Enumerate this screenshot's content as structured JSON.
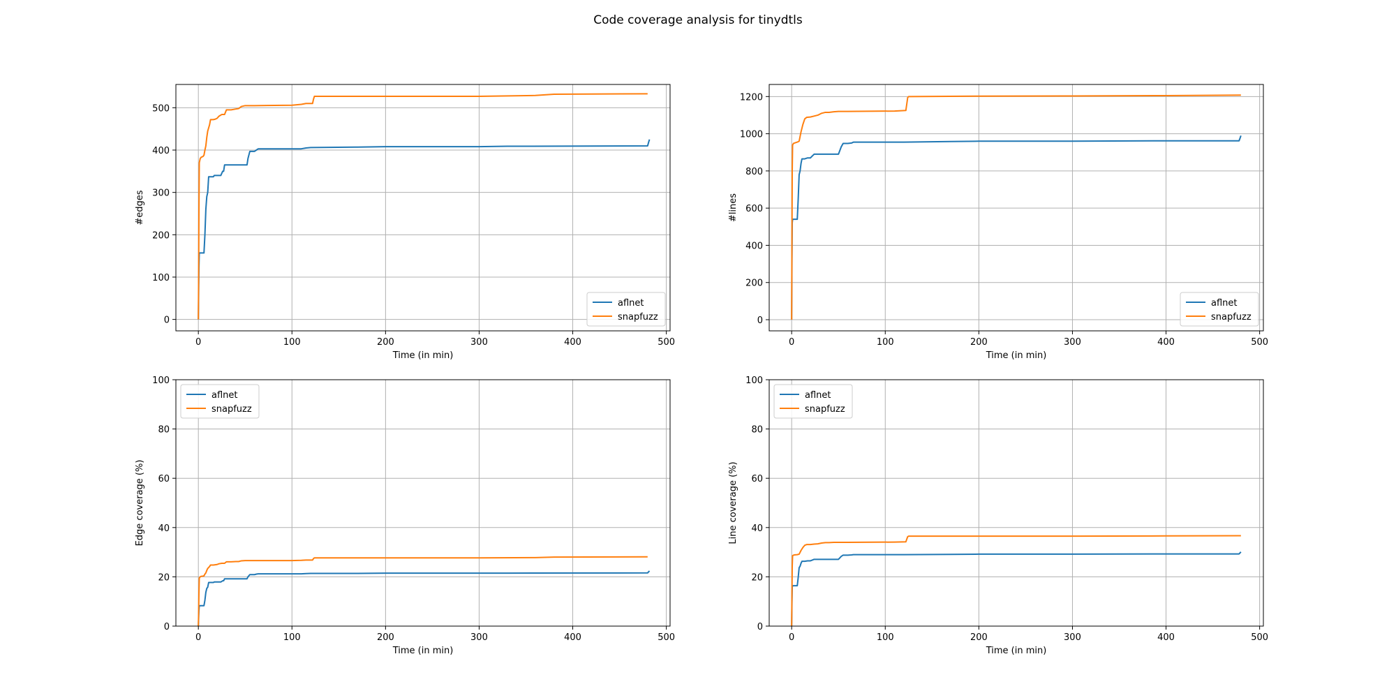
{
  "figure": {
    "title": "Code coverage analysis for tinydtls",
    "colors": {
      "aflnet": "#1f77b4",
      "snapfuzz": "#ff7f0e",
      "grid": "#b0b0b0"
    }
  },
  "chart_data": [
    {
      "type": "line",
      "xlabel": "Time (in min)",
      "ylabel": "#edges",
      "xlim": [
        -24,
        504
      ],
      "ylim": [
        -27,
        555
      ],
      "xticks": [
        0,
        100,
        200,
        300,
        400,
        500
      ],
      "yticks": [
        0,
        100,
        200,
        300,
        400,
        500
      ],
      "grid": true,
      "legend_loc": "lower-right",
      "series": [
        {
          "name": "aflnet",
          "color": "#1f77b4",
          "x": [
            0,
            0.3,
            0.6,
            1,
            2,
            4,
            6,
            7,
            8,
            9,
            10,
            11,
            13,
            16,
            17,
            19,
            24,
            26,
            27,
            28,
            30,
            48,
            52,
            53,
            55,
            56,
            60,
            62,
            64,
            67,
            70,
            110,
            115,
            120,
            170,
            200,
            300,
            330,
            480,
            481,
            482
          ],
          "y": [
            0,
            60,
            120,
            157,
            157,
            157,
            157,
            200,
            260,
            290,
            300,
            337,
            337,
            337,
            340,
            340,
            340,
            350,
            350,
            365,
            365,
            365,
            365,
            380,
            397,
            397,
            397,
            400,
            403,
            403,
            403,
            403,
            405,
            406,
            407,
            408,
            408,
            409,
            410,
            418,
            425
          ]
        },
        {
          "name": "snapfuzz",
          "color": "#ff7f0e",
          "x": [
            0,
            0.3,
            0.6,
            1,
            2,
            3,
            5,
            6,
            7,
            8,
            9,
            10,
            12,
            13,
            16,
            18,
            20,
            22,
            25,
            28,
            30,
            35,
            40,
            43,
            46,
            50,
            55,
            60,
            100,
            110,
            115,
            122,
            123,
            124,
            125,
            200,
            300,
            360,
            380,
            480
          ],
          "y": [
            0,
            100,
            250,
            370,
            380,
            383,
            385,
            388,
            400,
            410,
            430,
            445,
            460,
            472,
            472,
            473,
            475,
            480,
            484,
            484,
            495,
            495,
            497,
            498,
            503,
            505,
            505,
            505,
            506,
            508,
            510,
            510,
            520,
            527,
            527,
            527,
            527,
            529,
            532,
            533
          ]
        }
      ]
    },
    {
      "type": "line",
      "xlabel": "Time (in min)",
      "ylabel": "#lines",
      "xlim": [
        -24,
        504
      ],
      "ylim": [
        -60,
        1265
      ],
      "xticks": [
        0,
        100,
        200,
        300,
        400,
        500
      ],
      "yticks": [
        0,
        200,
        400,
        600,
        800,
        1000,
        1200
      ],
      "grid": true,
      "legend_loc": "lower-right",
      "series": [
        {
          "name": "aflnet",
          "color": "#1f77b4",
          "x": [
            0,
            0.3,
            0.6,
            1,
            2,
            4,
            6,
            7,
            8,
            9,
            10,
            11,
            14,
            17,
            20,
            22,
            24,
            26,
            30,
            50,
            53,
            55,
            60,
            64,
            66,
            70,
            120,
            170,
            200,
            300,
            400,
            478,
            479,
            480
          ],
          "y": [
            0,
            300,
            520,
            540,
            540,
            540,
            540,
            650,
            780,
            800,
            840,
            865,
            865,
            870,
            870,
            880,
            890,
            890,
            890,
            890,
            930,
            948,
            948,
            950,
            955,
            955,
            955,
            958,
            960,
            960,
            962,
            962,
            975,
            990
          ]
        },
        {
          "name": "snapfuzz",
          "color": "#ff7f0e",
          "x": [
            0,
            0.3,
            0.6,
            1,
            2,
            3,
            6,
            8,
            10,
            12,
            14,
            16,
            20,
            24,
            28,
            32,
            36,
            40,
            45,
            50,
            60,
            110,
            122,
            123,
            124,
            125,
            200,
            300,
            400,
            480
          ],
          "y": [
            0,
            400,
            800,
            940,
            948,
            950,
            955,
            960,
            1010,
            1050,
            1080,
            1088,
            1090,
            1095,
            1100,
            1110,
            1115,
            1115,
            1118,
            1120,
            1120,
            1122,
            1125,
            1160,
            1195,
            1200,
            1202,
            1203,
            1205,
            1208
          ]
        }
      ]
    },
    {
      "type": "line",
      "xlabel": "Time (in min)",
      "ylabel": "Edge coverage (%)",
      "xlim": [
        -24,
        504
      ],
      "ylim": [
        0,
        100
      ],
      "xticks": [
        0,
        100,
        200,
        300,
        400,
        500
      ],
      "yticks": [
        0,
        20,
        40,
        60,
        80,
        100
      ],
      "grid": true,
      "legend_loc": "upper-left",
      "series": [
        {
          "name": "aflnet",
          "color": "#1f77b4",
          "x": [
            0,
            0.3,
            0.6,
            1,
            2,
            4,
            6,
            7,
            8,
            9,
            10,
            11,
            13,
            16,
            17,
            19,
            24,
            26,
            27,
            28,
            30,
            48,
            52,
            53,
            55,
            56,
            60,
            62,
            64,
            67,
            70,
            110,
            115,
            120,
            170,
            200,
            300,
            330,
            480,
            481,
            482
          ],
          "y": [
            0,
            3.2,
            6.3,
            8.3,
            8.3,
            8.3,
            8.3,
            10.5,
            13.7,
            15.3,
            15.8,
            17.7,
            17.7,
            17.7,
            17.9,
            17.9,
            17.9,
            18.4,
            18.4,
            19.2,
            19.2,
            19.2,
            19.2,
            20.0,
            20.9,
            20.9,
            20.9,
            21.1,
            21.2,
            21.2,
            21.2,
            21.2,
            21.3,
            21.4,
            21.4,
            21.5,
            21.5,
            21.5,
            21.6,
            22.0,
            22.4
          ]
        },
        {
          "name": "snapfuzz",
          "color": "#ff7f0e",
          "x": [
            0,
            0.3,
            0.6,
            1,
            2,
            3,
            5,
            6,
            7,
            8,
            9,
            10,
            12,
            13,
            16,
            18,
            20,
            22,
            25,
            28,
            30,
            35,
            40,
            43,
            46,
            50,
            55,
            60,
            100,
            110,
            115,
            122,
            123,
            124,
            125,
            200,
            300,
            360,
            380,
            480
          ],
          "y": [
            0,
            5.3,
            13.2,
            19.5,
            20.0,
            20.2,
            20.3,
            20.4,
            21.1,
            21.6,
            22.6,
            23.4,
            24.2,
            24.8,
            24.8,
            24.9,
            25.0,
            25.3,
            25.5,
            25.5,
            26.1,
            26.1,
            26.2,
            26.2,
            26.5,
            26.6,
            26.6,
            26.6,
            26.6,
            26.7,
            26.8,
            26.8,
            27.4,
            27.7,
            27.7,
            27.7,
            27.7,
            27.8,
            28.0,
            28.1
          ]
        }
      ]
    },
    {
      "type": "line",
      "xlabel": "Time (in min)",
      "ylabel": "Line coverage (%)",
      "xlim": [
        -24,
        504
      ],
      "ylim": [
        0,
        100
      ],
      "xticks": [
        0,
        100,
        200,
        300,
        400,
        500
      ],
      "yticks": [
        0,
        20,
        40,
        60,
        80,
        100
      ],
      "grid": true,
      "legend_loc": "upper-left",
      "series": [
        {
          "name": "aflnet",
          "color": "#1f77b4",
          "x": [
            0,
            0.3,
            0.6,
            1,
            2,
            4,
            6,
            7,
            8,
            9,
            10,
            11,
            14,
            17,
            20,
            22,
            24,
            26,
            30,
            50,
            53,
            55,
            60,
            64,
            66,
            70,
            120,
            170,
            200,
            300,
            400,
            478,
            479,
            480
          ],
          "y": [
            0,
            9.1,
            15.8,
            16.4,
            16.4,
            16.4,
            16.4,
            19.8,
            23.7,
            24.3,
            25.5,
            26.3,
            26.3,
            26.5,
            26.5,
            26.8,
            27.1,
            27.1,
            27.1,
            27.1,
            28.3,
            28.8,
            28.8,
            28.9,
            29.0,
            29.0,
            29.0,
            29.1,
            29.2,
            29.2,
            29.3,
            29.3,
            29.7,
            30.1
          ]
        },
        {
          "name": "snapfuzz",
          "color": "#ff7f0e",
          "x": [
            0,
            0.3,
            0.6,
            1,
            2,
            3,
            6,
            8,
            10,
            12,
            14,
            16,
            20,
            24,
            28,
            32,
            36,
            40,
            45,
            50,
            60,
            110,
            122,
            123,
            124,
            125,
            200,
            300,
            400,
            480
          ],
          "y": [
            0,
            12.2,
            24.3,
            28.6,
            28.8,
            28.9,
            29.0,
            29.2,
            30.7,
            31.9,
            32.8,
            33.1,
            33.1,
            33.3,
            33.4,
            33.7,
            33.9,
            33.9,
            34.0,
            34.0,
            34.0,
            34.1,
            34.2,
            35.3,
            36.3,
            36.5,
            36.5,
            36.5,
            36.6,
            36.7
          ]
        }
      ]
    }
  ]
}
